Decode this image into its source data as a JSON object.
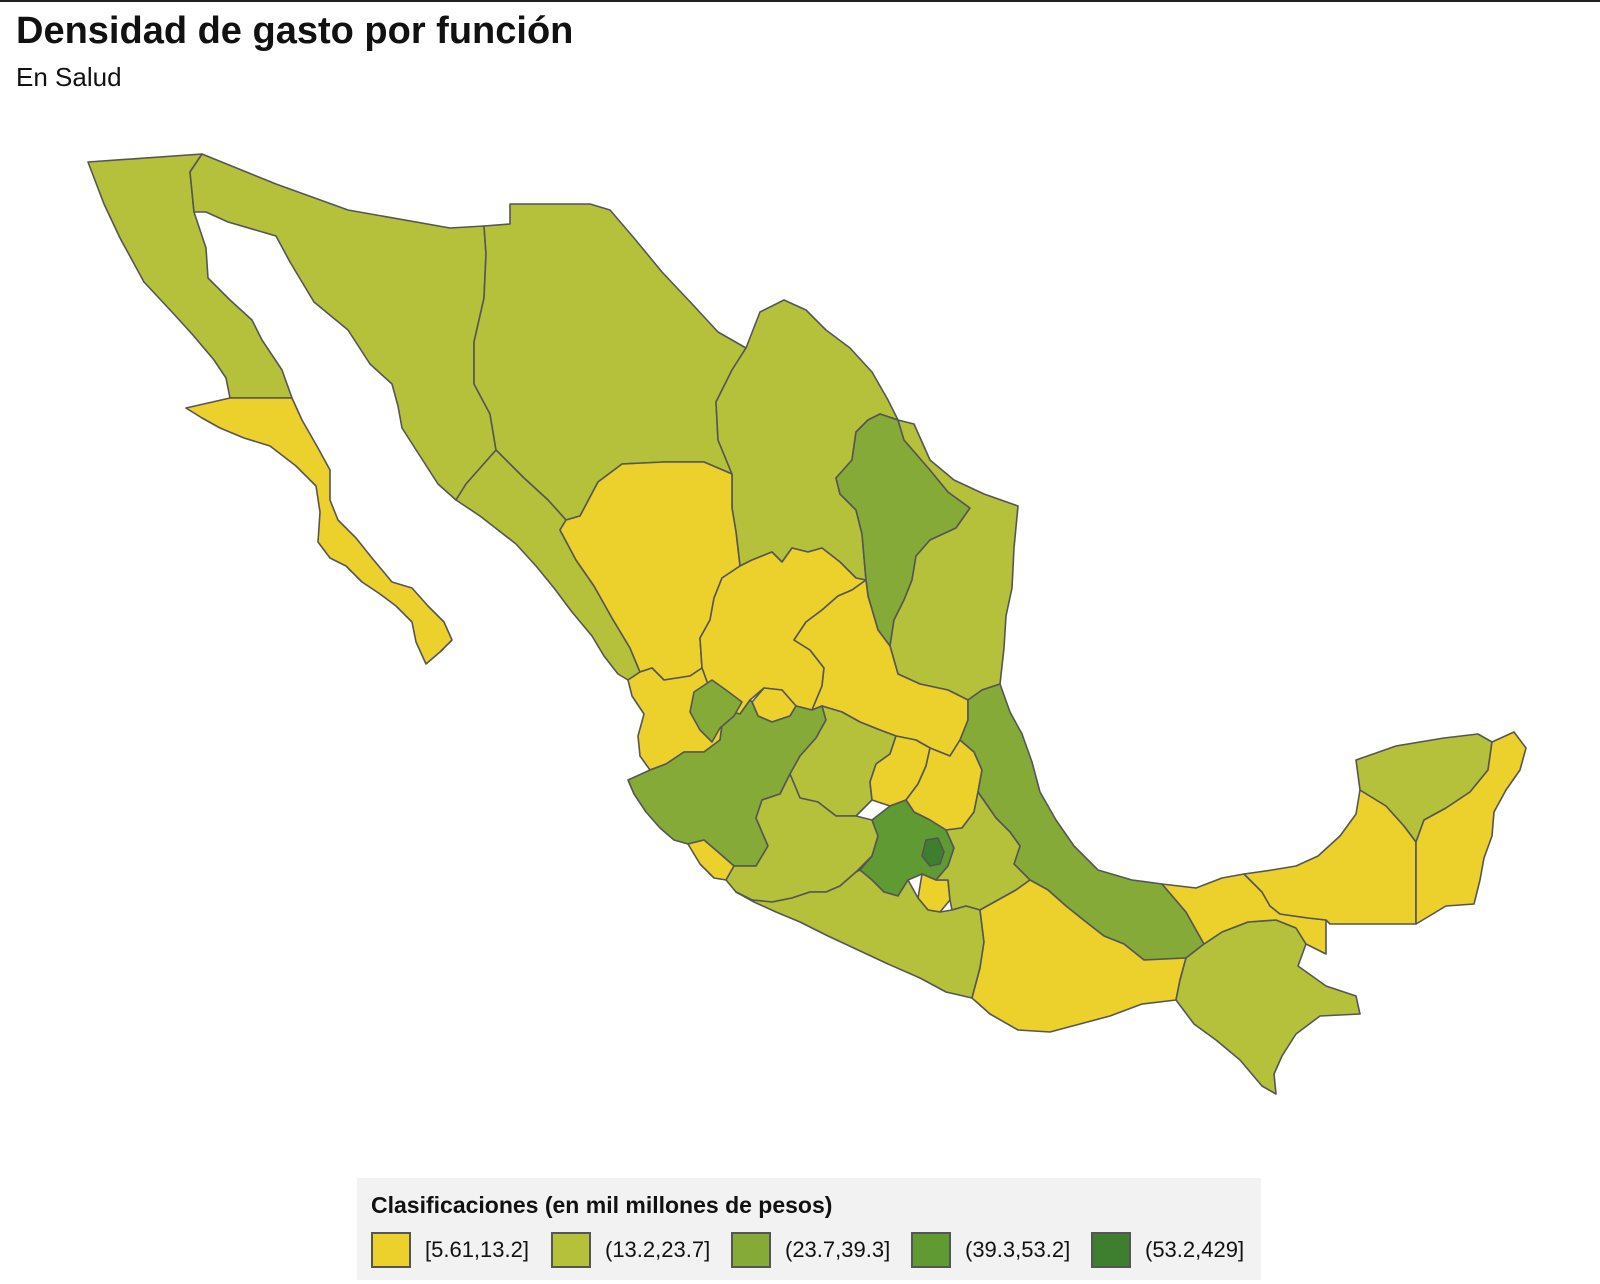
{
  "title": "Densidad de gasto por función",
  "subtitle": "En Salud",
  "palette": {
    "c1": "#ecd02c",
    "c2": "#b5c13b",
    "c3": "#86aa38",
    "c4": "#5f9a32",
    "c5": "#3d7f2e"
  },
  "legend": {
    "title": "Clasificaciones (en mil millones de pesos)",
    "classes": [
      {
        "label": "[5.61,13.2]",
        "color": "#ecd02c"
      },
      {
        "label": "(13.2,23.7]",
        "color": "#b5c13b"
      },
      {
        "label": "(23.7,39.3]",
        "color": "#86aa38"
      },
      {
        "label": "(39.3,53.2]",
        "color": "#5f9a32"
      },
      {
        "label": "(53.2,429]",
        "color": "#3d7f2e"
      }
    ]
  },
  "states": [
    {
      "id": "baja-california",
      "cls": 1
    },
    {
      "id": "baja-california-sur",
      "cls": 0
    },
    {
      "id": "sonora",
      "cls": 1
    },
    {
      "id": "chihuahua",
      "cls": 1
    },
    {
      "id": "coahuila",
      "cls": 1
    },
    {
      "id": "nuevo-leon",
      "cls": 2
    },
    {
      "id": "tamaulipas",
      "cls": 1
    },
    {
      "id": "sinaloa",
      "cls": 1
    },
    {
      "id": "durango",
      "cls": 0
    },
    {
      "id": "zacatecas",
      "cls": 0
    },
    {
      "id": "san-luis-potosi",
      "cls": 0
    },
    {
      "id": "nayarit",
      "cls": 0
    },
    {
      "id": "aguascalientes",
      "cls": 0
    },
    {
      "id": "jalisco",
      "cls": 2
    },
    {
      "id": "guanajuato",
      "cls": 1
    },
    {
      "id": "queretaro",
      "cls": 0
    },
    {
      "id": "hidalgo",
      "cls": 0
    },
    {
      "id": "veracruz",
      "cls": 2
    },
    {
      "id": "colima",
      "cls": 0
    },
    {
      "id": "michoacan",
      "cls": 1
    },
    {
      "id": "estado-de-mexico",
      "cls": 3
    },
    {
      "id": "ciudad-de-mexico",
      "cls": 4
    },
    {
      "id": "morelos",
      "cls": 0
    },
    {
      "id": "tlaxcala",
      "cls": 0
    },
    {
      "id": "puebla",
      "cls": 1
    },
    {
      "id": "guerrero",
      "cls": 1
    },
    {
      "id": "oaxaca",
      "cls": 0
    },
    {
      "id": "chiapas",
      "cls": 1
    },
    {
      "id": "tabasco",
      "cls": 0
    },
    {
      "id": "campeche",
      "cls": 0
    },
    {
      "id": "yucatan",
      "cls": 1
    },
    {
      "id": "quintana-roo",
      "cls": 0
    }
  ]
}
